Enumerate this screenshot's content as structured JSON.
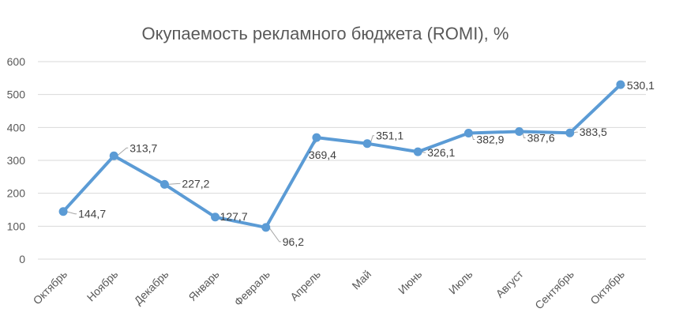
{
  "chart_data": {
    "type": "line",
    "title": "Окупаемость рекламного бюджета (ROMI), %",
    "xlabel": "",
    "ylabel": "",
    "categories": [
      "Октябрь",
      "Ноябрь",
      "Декабрь",
      "Январь",
      "Февраль",
      "Апрель",
      "Май",
      "Июнь",
      "Июль",
      "Август",
      "Сентябрь",
      "Октябрь"
    ],
    "series": [
      {
        "values": [
          144.7,
          313.7,
          227.2,
          127.7,
          96.2,
          369.4,
          351.1,
          326.1,
          382.9,
          387.6,
          383.5,
          530.1
        ],
        "labels": [
          "144,7",
          "313,7",
          "227,2",
          "127,7",
          "96,2",
          "369,4",
          "351,1",
          "326,1",
          "382,9",
          "387,6",
          "383,5",
          "530,1"
        ],
        "color": "#5b9bd5"
      }
    ],
    "ylim": [
      0,
      600
    ],
    "yticks": [
      "0",
      "100",
      "200",
      "300",
      "400",
      "500",
      "600"
    ],
    "grid": true,
    "legend": "none"
  }
}
